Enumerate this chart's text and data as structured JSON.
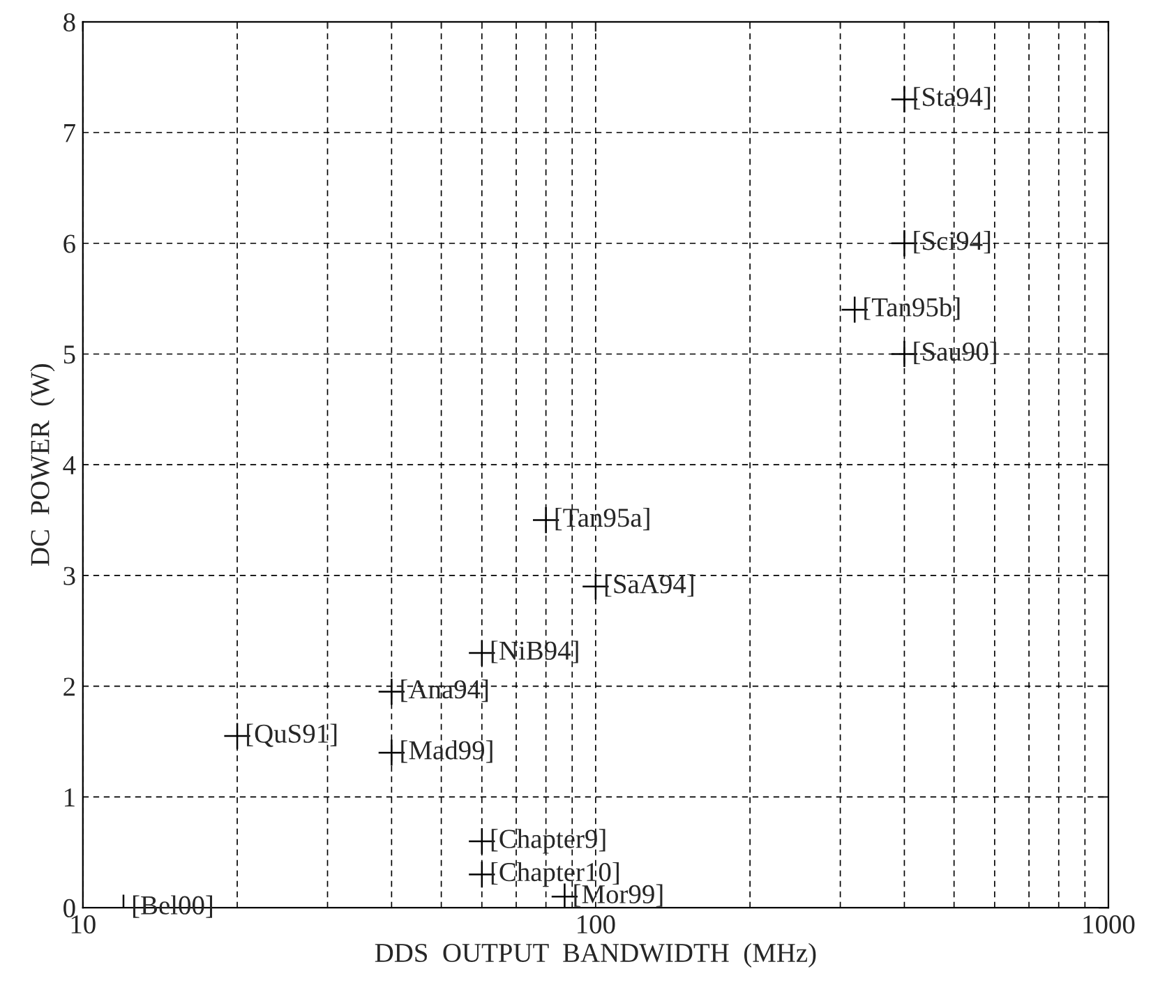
{
  "chart_data": {
    "type": "scatter",
    "xlabel": "DDS  OUTPUT  BANDWIDTH  (MHz)",
    "ylabel": "DC  POWER  (W)",
    "log": "x",
    "xlim": [
      10,
      1000
    ],
    "xticks": [
      10,
      100,
      1000
    ],
    "ylim": [
      0,
      8
    ],
    "yticks": [
      0,
      1,
      2,
      3,
      4,
      5,
      6,
      7,
      8
    ],
    "grid": true,
    "marker": "cross",
    "series": [
      {
        "color": "#000000",
        "x": [
          400,
          400,
          320,
          400,
          80,
          100,
          60,
          40,
          20,
          40,
          60,
          60,
          87,
          12
        ],
        "values": [
          7.3,
          6.0,
          5.4,
          5.0,
          3.5,
          2.9,
          2.3,
          1.95,
          1.55,
          1.4,
          0.6,
          0.3,
          0.1,
          0
        ],
        "value_labels": [
          "[Sta94]",
          "[Sci94]",
          "[Tan95b]",
          "[Sau90]",
          "[Tan95a]",
          "[SaA94]",
          "[NiB94]",
          "[Ana94]",
          "[QuS91]",
          "[Mad99]",
          "[Chapter9]",
          "[Chapter10]",
          "[Mor99]",
          "[Bel00]"
        ]
      }
    ]
  }
}
